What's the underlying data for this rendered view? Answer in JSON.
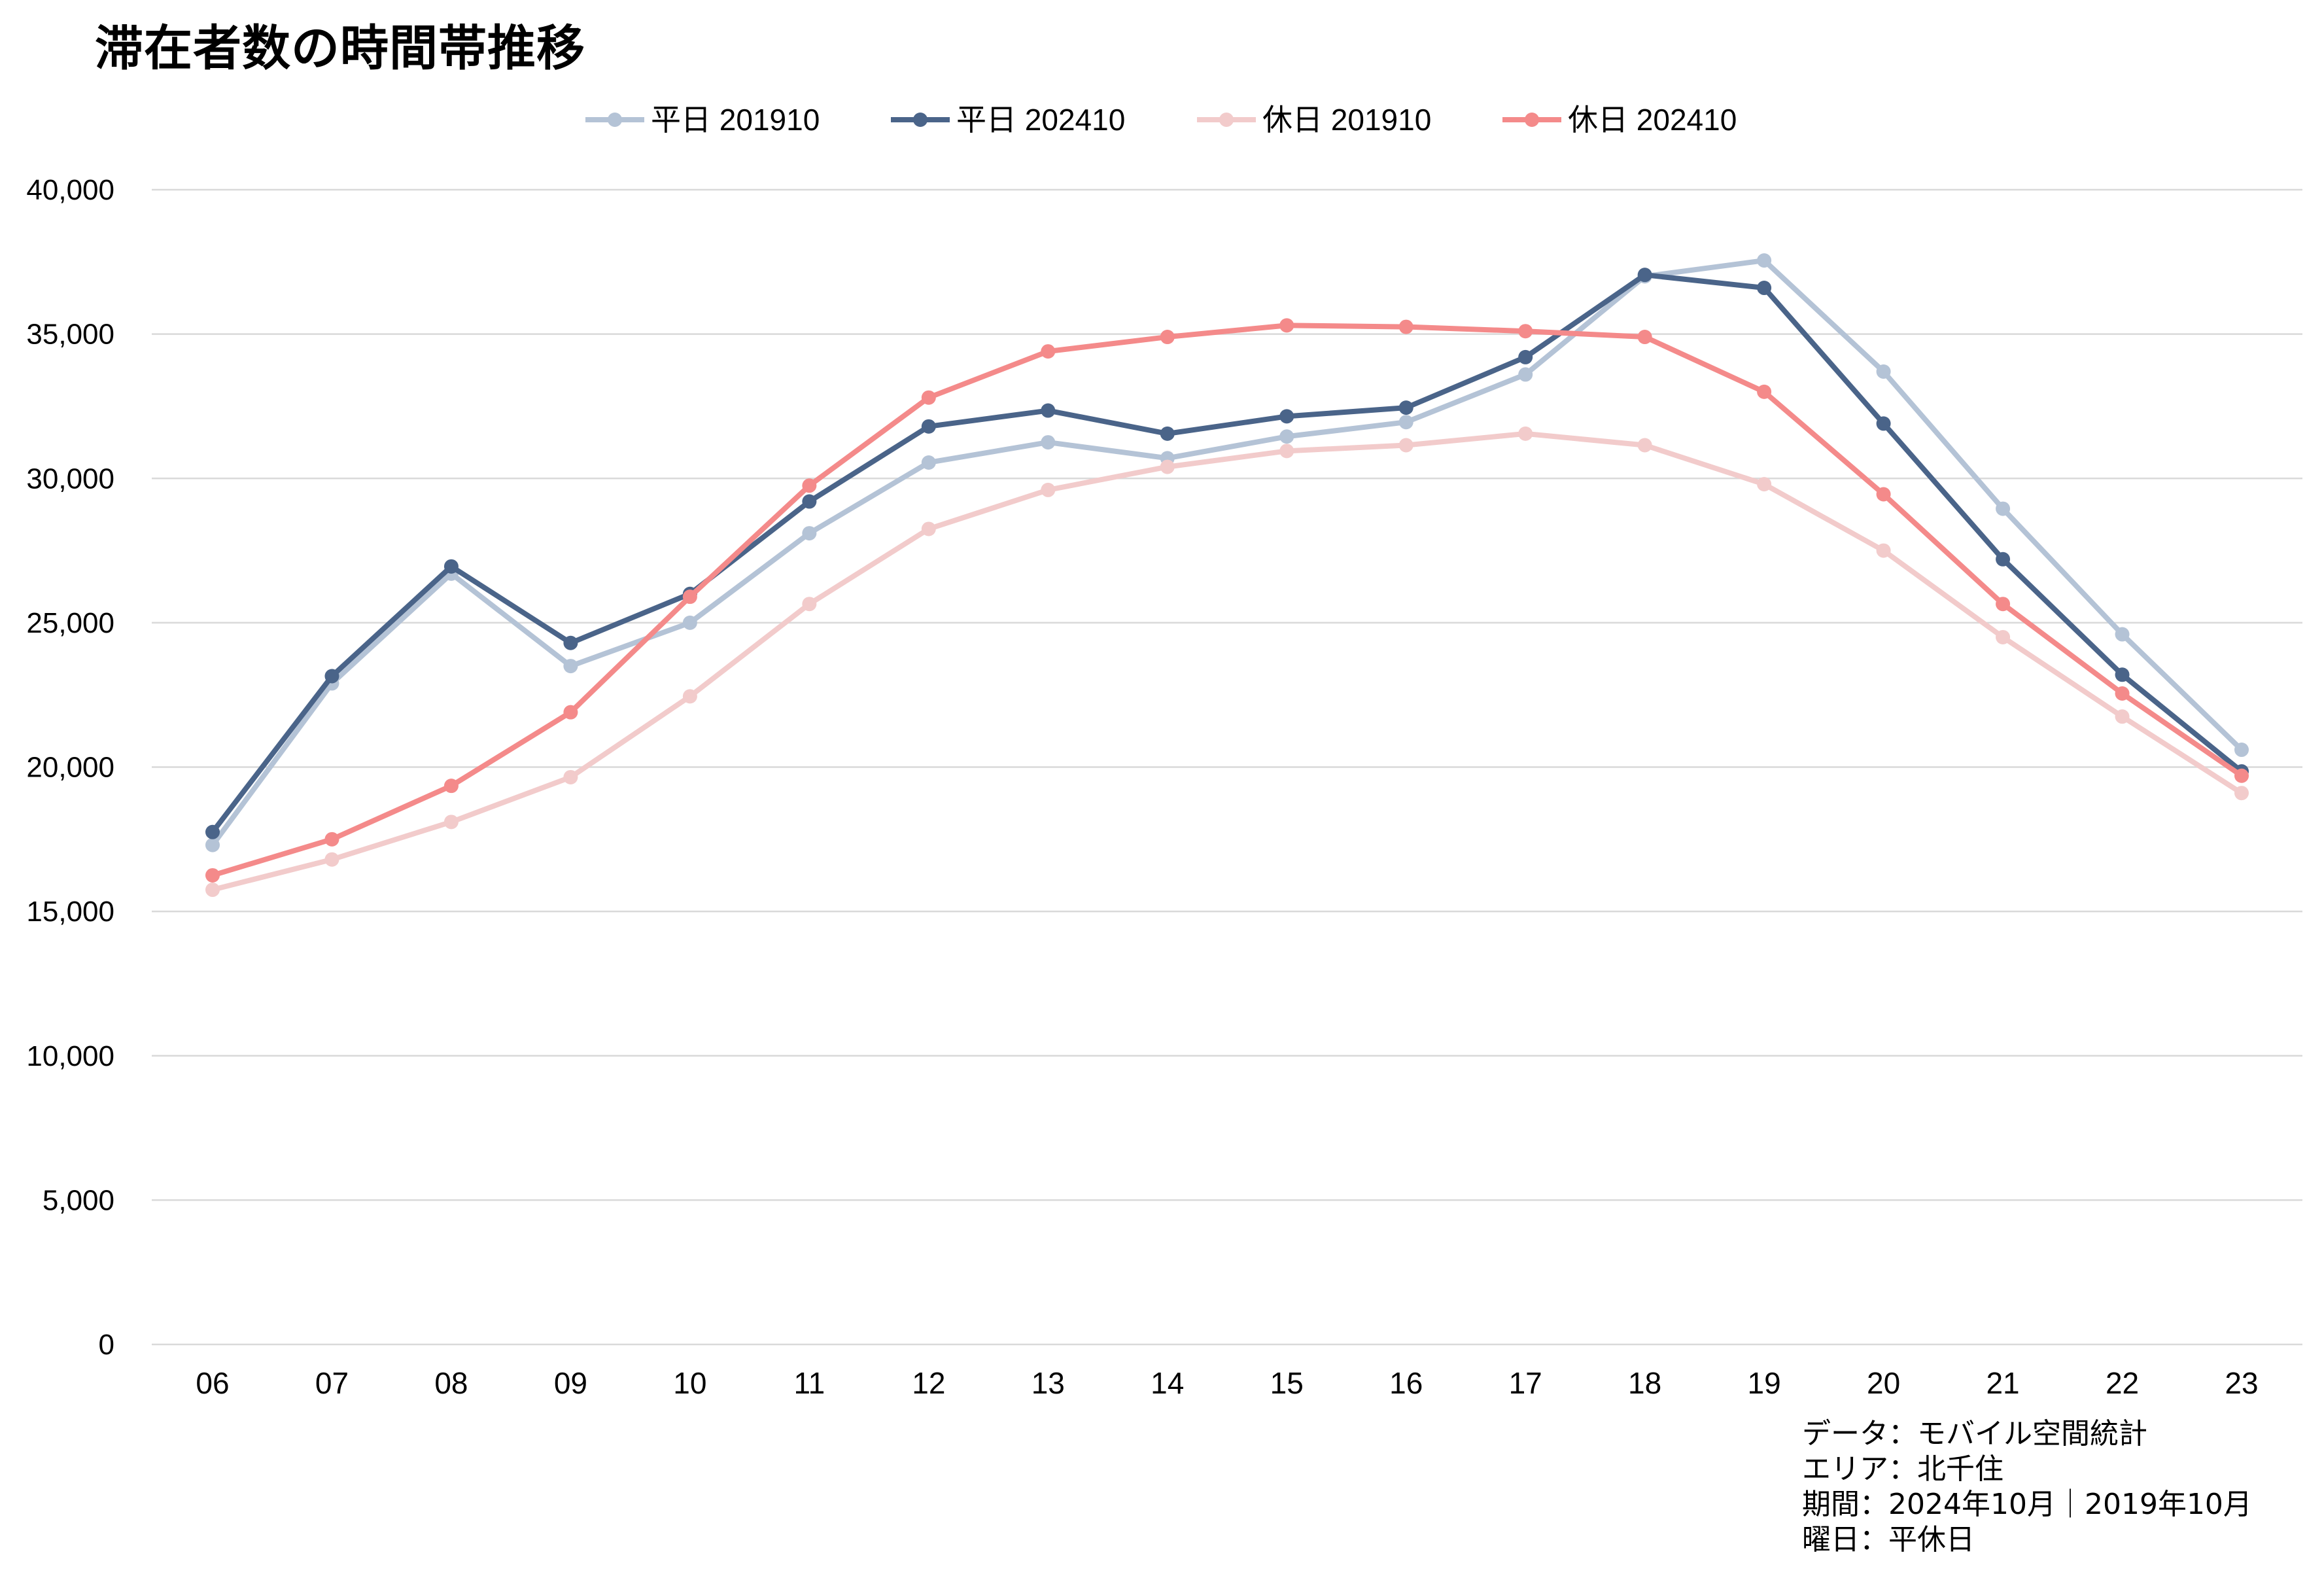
{
  "chart_data": {
    "type": "line",
    "title": "滞在者数の時間帯推移",
    "xlabel": "",
    "ylabel": "",
    "categories": [
      "06",
      "07",
      "08",
      "09",
      "10",
      "11",
      "12",
      "13",
      "14",
      "15",
      "16",
      "17",
      "18",
      "19",
      "20",
      "21",
      "22",
      "23"
    ],
    "ylim": [
      0,
      40000
    ],
    "yticks": [
      0,
      5000,
      10000,
      15000,
      20000,
      25000,
      30000,
      35000,
      40000
    ],
    "ytick_labels": [
      "0",
      "5,000",
      "10,000",
      "15,000",
      "20,000",
      "25,000",
      "30,000",
      "35,000",
      "40,000"
    ],
    "grid": true,
    "legend_position": "top-center",
    "series": [
      {
        "name": "平日 201910",
        "color": "#b4c3d6",
        "values": [
          17300,
          22900,
          26700,
          23500,
          25000,
          28100,
          30550,
          31250,
          30700,
          31450,
          31950,
          33600,
          37000,
          37550,
          33700,
          28950,
          24600,
          20600
        ]
      },
      {
        "name": "平日 202410",
        "color": "#4a6489",
        "values": [
          17750,
          23150,
          26950,
          24300,
          26000,
          29200,
          31800,
          32350,
          31550,
          32150,
          32450,
          34200,
          37050,
          36600,
          31900,
          27200,
          23200,
          19850
        ]
      },
      {
        "name": "休日 201910",
        "color": "#f2cbcb",
        "values": [
          15750,
          16800,
          18100,
          19650,
          22450,
          25650,
          28250,
          29600,
          30400,
          30950,
          31150,
          31550,
          31150,
          29800,
          27500,
          24500,
          21750,
          19100
        ]
      },
      {
        "name": "休日 202410",
        "color": "#f48a8a",
        "values": [
          16250,
          17500,
          19350,
          21900,
          25900,
          29750,
          32800,
          34400,
          34900,
          35300,
          35250,
          35100,
          34900,
          33000,
          29450,
          25650,
          22550,
          19700
        ]
      }
    ]
  },
  "notes": [
    "データ：モバイル空間統計",
    "エリア：北千住",
    "期間：2024年10月｜2019年10月",
    "曜日：平休日"
  ]
}
